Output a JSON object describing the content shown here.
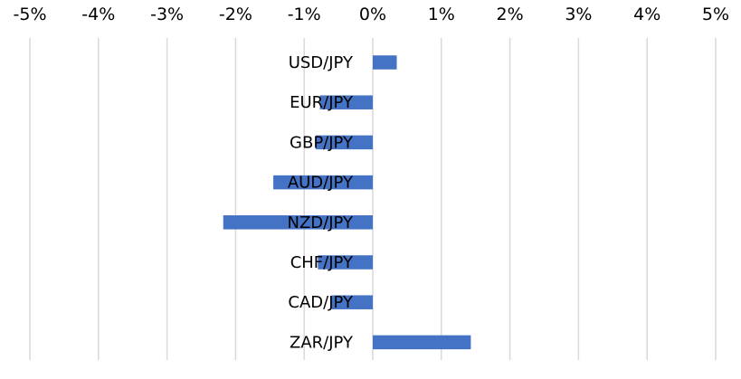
{
  "chart_data": {
    "type": "bar",
    "orientation": "horizontal",
    "title": "",
    "xlabel": "",
    "ylabel": "",
    "xlim": [
      -5,
      5
    ],
    "x_ticks": [
      -5,
      -4,
      -3,
      -2,
      -1,
      0,
      1,
      2,
      3,
      4,
      5
    ],
    "x_tick_labels": [
      "-5%",
      "-4%",
      "-3%",
      "-2%",
      "-1%",
      "0%",
      "1%",
      "2%",
      "3%",
      "4%",
      "5%"
    ],
    "x_axis_position": "top",
    "grid": true,
    "legend": "none",
    "categories": [
      "USD/JPY",
      "EUR/JPY",
      "GBP/JPY",
      "AUD/JPY",
      "NZD/JPY",
      "CHF/JPY",
      "CAD/JPY",
      "ZAR/JPY"
    ],
    "values": [
      0.35,
      -0.77,
      -0.83,
      -1.45,
      -2.18,
      -0.8,
      -0.6,
      1.43
    ],
    "unit": "%",
    "bar_color": "#4472c4",
    "grid_color": "#d9d9d9"
  }
}
